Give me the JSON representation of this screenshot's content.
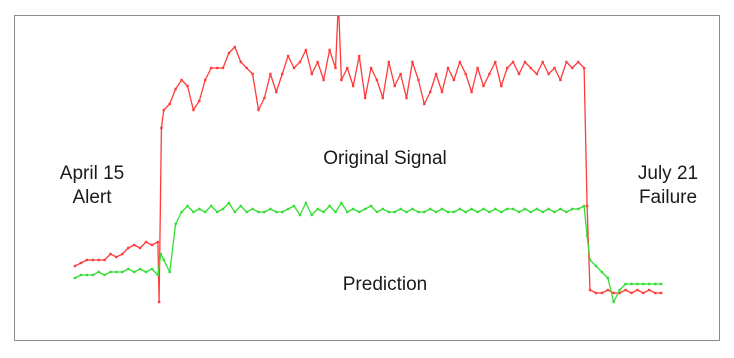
{
  "chart_data": {
    "type": "line",
    "title": "",
    "xlabel": "",
    "ylabel": "",
    "grid": false,
    "legend": "none",
    "annotations": {
      "start": {
        "line1": "April 15",
        "line2": "Alert"
      },
      "end": {
        "line1": "July 21",
        "line2": "Failure"
      },
      "original_label": "Original Signal",
      "prediction_label": "Prediction"
    },
    "xlim": [
      0,
      100
    ],
    "ylim": [
      0,
      100
    ],
    "series": [
      {
        "color": "#ff3b3b",
        "values": [
          [
            0,
            20
          ],
          [
            1,
            21
          ],
          [
            2,
            22
          ],
          [
            3,
            22
          ],
          [
            4,
            22
          ],
          [
            5,
            22
          ],
          [
            6,
            24
          ],
          [
            7,
            23
          ],
          [
            8,
            24
          ],
          [
            9,
            26
          ],
          [
            10,
            27
          ],
          [
            11,
            26
          ],
          [
            12,
            28
          ],
          [
            13,
            27
          ],
          [
            14,
            28
          ],
          [
            14.2,
            8
          ],
          [
            14.6,
            66
          ],
          [
            15,
            72
          ],
          [
            16,
            74
          ],
          [
            17,
            79
          ],
          [
            18,
            82
          ],
          [
            19,
            80
          ],
          [
            20,
            72
          ],
          [
            21,
            75
          ],
          [
            22,
            82
          ],
          [
            23,
            86
          ],
          [
            24,
            86
          ],
          [
            25,
            86
          ],
          [
            26,
            91
          ],
          [
            27,
            93
          ],
          [
            28,
            88
          ],
          [
            29,
            86
          ],
          [
            30,
            84
          ],
          [
            31,
            72
          ],
          [
            32,
            76
          ],
          [
            33,
            84
          ],
          [
            34,
            78
          ],
          [
            35,
            84
          ],
          [
            36,
            90
          ],
          [
            37,
            86
          ],
          [
            38,
            88
          ],
          [
            39,
            92
          ],
          [
            40,
            84
          ],
          [
            41,
            88
          ],
          [
            42,
            82
          ],
          [
            43,
            92
          ],
          [
            44,
            86
          ],
          [
            44.5,
            108
          ],
          [
            45,
            82
          ],
          [
            46,
            86
          ],
          [
            47,
            80
          ],
          [
            48,
            90
          ],
          [
            49,
            76
          ],
          [
            50,
            86
          ],
          [
            51,
            82
          ],
          [
            52,
            76
          ],
          [
            53,
            88
          ],
          [
            54,
            80
          ],
          [
            55,
            84
          ],
          [
            56,
            76
          ],
          [
            57,
            88
          ],
          [
            58,
            82
          ],
          [
            59,
            74
          ],
          [
            60,
            78
          ],
          [
            61,
            84
          ],
          [
            62,
            78
          ],
          [
            63,
            86
          ],
          [
            64,
            82
          ],
          [
            65,
            88
          ],
          [
            66,
            84
          ],
          [
            67,
            78
          ],
          [
            68,
            86
          ],
          [
            69,
            80
          ],
          [
            70,
            84
          ],
          [
            71,
            88
          ],
          [
            72,
            80
          ],
          [
            73,
            86
          ],
          [
            74,
            88
          ],
          [
            75,
            84
          ],
          [
            76,
            88
          ],
          [
            77,
            86
          ],
          [
            78,
            84
          ],
          [
            79,
            88
          ],
          [
            80,
            84
          ],
          [
            81,
            86
          ],
          [
            82,
            82
          ],
          [
            83,
            88
          ],
          [
            84,
            86
          ],
          [
            85,
            88
          ],
          [
            86,
            86
          ],
          [
            86.5,
            40
          ],
          [
            87,
            12
          ],
          [
            88,
            11
          ],
          [
            89,
            11
          ],
          [
            90,
            12
          ],
          [
            91,
            11
          ],
          [
            92,
            11
          ],
          [
            93,
            12
          ],
          [
            94,
            11
          ],
          [
            95,
            12
          ],
          [
            96,
            11
          ],
          [
            97,
            12
          ],
          [
            98,
            11
          ],
          [
            99,
            11
          ]
        ]
      },
      {
        "color": "#33dd33",
        "values": [
          [
            0,
            16
          ],
          [
            1,
            17
          ],
          [
            2,
            17
          ],
          [
            3,
            17
          ],
          [
            4,
            18
          ],
          [
            5,
            17
          ],
          [
            6,
            18
          ],
          [
            7,
            18
          ],
          [
            8,
            18
          ],
          [
            9,
            19
          ],
          [
            10,
            18
          ],
          [
            11,
            19
          ],
          [
            12,
            18
          ],
          [
            13,
            19
          ],
          [
            14,
            17
          ],
          [
            14.5,
            24
          ],
          [
            15,
            22
          ],
          [
            16,
            18
          ],
          [
            17,
            34
          ],
          [
            18,
            38
          ],
          [
            19,
            40
          ],
          [
            20,
            38
          ],
          [
            21,
            39
          ],
          [
            22,
            38
          ],
          [
            23,
            40
          ],
          [
            24,
            38
          ],
          [
            25,
            39
          ],
          [
            26,
            41
          ],
          [
            27,
            38
          ],
          [
            28,
            40
          ],
          [
            29,
            38
          ],
          [
            30,
            39
          ],
          [
            31,
            38
          ],
          [
            32,
            38
          ],
          [
            33,
            39
          ],
          [
            34,
            38
          ],
          [
            35,
            38
          ],
          [
            36,
            39
          ],
          [
            37,
            40
          ],
          [
            38,
            37
          ],
          [
            39,
            41
          ],
          [
            40,
            37
          ],
          [
            41,
            39
          ],
          [
            42,
            38
          ],
          [
            43,
            40
          ],
          [
            44,
            38
          ],
          [
            45,
            41
          ],
          [
            46,
            38
          ],
          [
            47,
            39
          ],
          [
            48,
            38
          ],
          [
            49,
            39
          ],
          [
            50,
            40
          ],
          [
            51,
            38
          ],
          [
            52,
            39
          ],
          [
            53,
            38
          ],
          [
            54,
            38
          ],
          [
            55,
            39
          ],
          [
            56,
            38
          ],
          [
            57,
            39
          ],
          [
            58,
            38
          ],
          [
            59,
            38
          ],
          [
            60,
            39
          ],
          [
            61,
            38
          ],
          [
            62,
            39
          ],
          [
            63,
            38
          ],
          [
            64,
            38
          ],
          [
            65,
            39
          ],
          [
            66,
            38
          ],
          [
            67,
            39
          ],
          [
            68,
            38
          ],
          [
            69,
            39
          ],
          [
            70,
            38
          ],
          [
            71,
            39
          ],
          [
            72,
            38
          ],
          [
            73,
            39
          ],
          [
            74,
            39
          ],
          [
            75,
            38
          ],
          [
            76,
            39
          ],
          [
            77,
            38
          ],
          [
            78,
            39
          ],
          [
            79,
            38
          ],
          [
            80,
            39
          ],
          [
            81,
            38
          ],
          [
            82,
            39
          ],
          [
            83,
            38
          ],
          [
            84,
            39
          ],
          [
            85,
            39
          ],
          [
            86,
            40
          ],
          [
            86.5,
            30
          ],
          [
            87,
            22
          ],
          [
            88,
            20
          ],
          [
            89,
            18
          ],
          [
            90,
            16
          ],
          [
            91,
            8
          ],
          [
            92,
            12
          ],
          [
            93,
            14
          ],
          [
            94,
            14
          ],
          [
            95,
            14
          ],
          [
            96,
            14
          ],
          [
            97,
            14
          ],
          [
            98,
            14
          ],
          [
            99,
            14
          ]
        ]
      }
    ]
  }
}
